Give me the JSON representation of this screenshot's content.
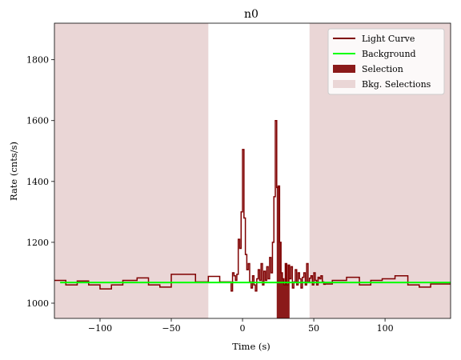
{
  "chart_data": {
    "type": "line",
    "title": "n0",
    "xlabel": "Time (s)",
    "ylabel": "Rate (cnts/s)",
    "xlim": [
      -132,
      146
    ],
    "ylim": [
      950,
      1920
    ],
    "xticks": [
      -100,
      -50,
      0,
      50,
      100
    ],
    "yticks": [
      1000,
      1200,
      1400,
      1600,
      1800
    ],
    "grid": false,
    "legend_placement": "top-right",
    "colors": {
      "light_curve": "#7f0000",
      "background": "#00ff00",
      "selection": "#8b1a1a",
      "bkg_selection": "#ead6d6"
    },
    "legend": [
      {
        "label": "Light Curve",
        "kind": "line",
        "color_key": "light_curve"
      },
      {
        "label": "Background",
        "kind": "line",
        "color_key": "background"
      },
      {
        "label": "Selection",
        "kind": "patch",
        "color_key": "selection"
      },
      {
        "label": "Bkg. Selections",
        "kind": "patch",
        "color_key": "bkg_selection"
      }
    ],
    "bkg_selections": [
      [
        -132,
        -24
      ],
      [
        47,
        146
      ]
    ],
    "selection": [
      24,
      33
    ],
    "background": {
      "x": [
        -128,
        146
      ],
      "y": [
        1068,
        1068
      ]
    },
    "light_curve": {
      "x": [
        -132,
        -124,
        -116,
        -108,
        -100,
        -92,
        -84,
        -74,
        -66,
        -58,
        -50,
        -42,
        -33,
        -24,
        -16,
        -8,
        -7,
        -6,
        -5,
        -4,
        -3,
        -2,
        -1,
        0,
        1,
        2,
        3,
        4,
        5,
        6,
        7,
        8,
        9,
        10,
        11,
        12,
        13,
        14,
        15,
        16,
        17,
        18,
        19,
        20,
        21,
        22,
        23,
        24,
        25,
        26,
        27,
        28,
        29,
        30,
        31,
        32,
        33,
        34,
        35,
        36,
        37,
        38,
        39,
        40,
        41,
        42,
        43,
        44,
        45,
        46,
        47,
        48,
        49,
        50,
        51,
        52,
        53,
        54,
        55,
        56,
        57,
        58,
        63,
        73,
        82,
        90,
        98,
        107,
        116,
        124,
        132,
        140,
        146
      ],
      "y": [
        1075,
        1060,
        1073,
        1060,
        1047,
        1060,
        1075,
        1083,
        1060,
        1053,
        1095,
        1095,
        1070,
        1088,
        1070,
        1040,
        1100,
        1090,
        1075,
        1095,
        1210,
        1180,
        1300,
        1505,
        1280,
        1160,
        1110,
        1130,
        1070,
        1050,
        1090,
        1060,
        1040,
        1080,
        1110,
        1075,
        1130,
        1060,
        1105,
        1075,
        1120,
        1080,
        1150,
        1100,
        1200,
        1350,
        1600,
        1380,
        1385,
        1200,
        1100,
        1080,
        1060,
        1130,
        1060,
        1125,
        1080,
        1120,
        1050,
        1070,
        1110,
        1060,
        1100,
        1080,
        1050,
        1085,
        1100,
        1060,
        1130,
        1070,
        1082,
        1090,
        1060,
        1100,
        1075,
        1060,
        1085,
        1080,
        1090,
        1070,
        1062,
        1063,
        1075,
        1085,
        1060,
        1075,
        1080,
        1090,
        1060,
        1053,
        1063,
        1063,
        1063
      ]
    }
  }
}
